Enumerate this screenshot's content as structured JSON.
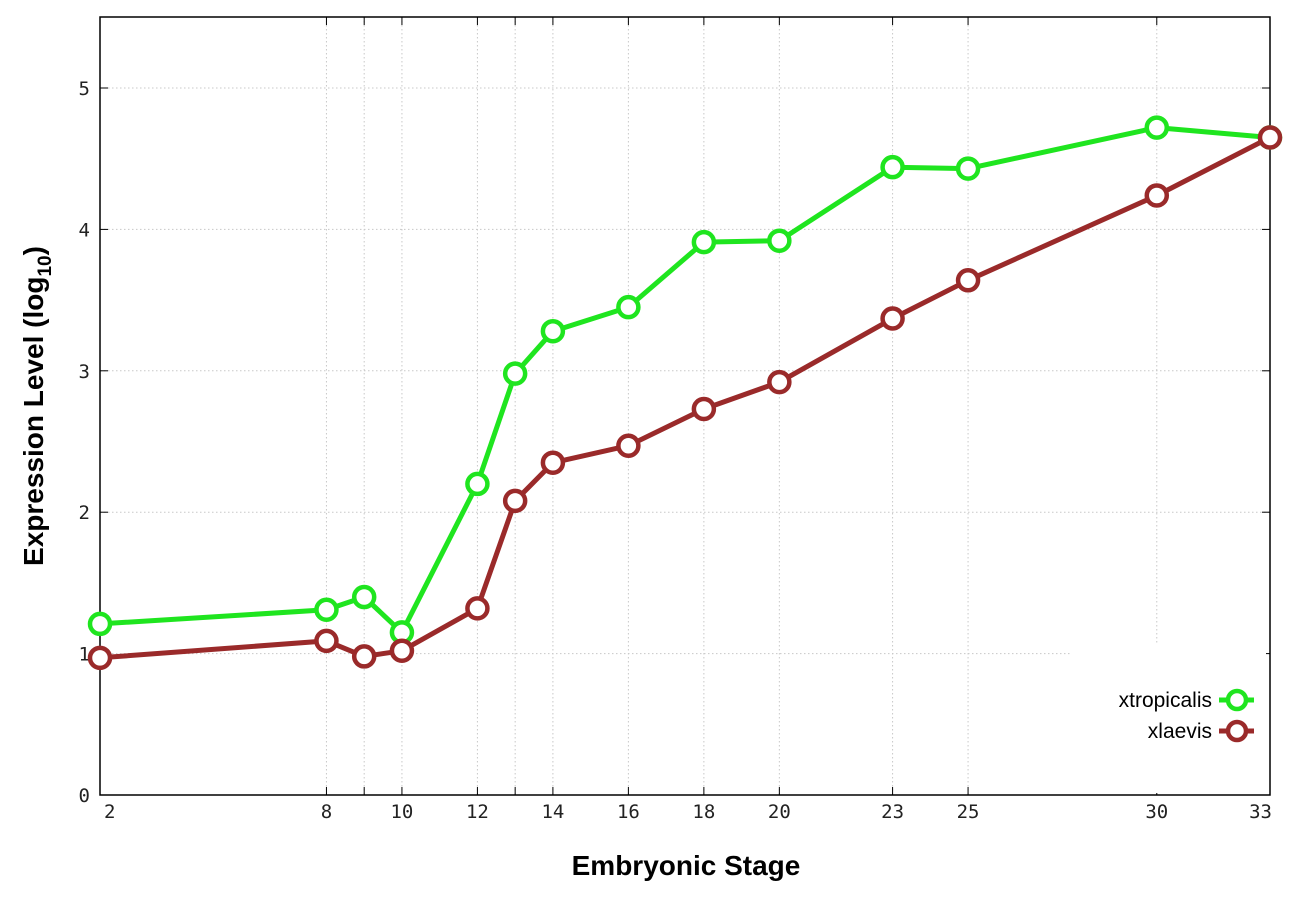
{
  "chart_data": {
    "type": "line",
    "xlabel": "Embryonic Stage",
    "ylabel_main": "Expression Level (log",
    "ylabel_sub": "10",
    "ylabel_close": ")",
    "x_ticks": [
      2,
      8,
      9,
      10,
      12,
      13,
      14,
      16,
      18,
      20,
      23,
      25,
      30,
      33
    ],
    "x_tick_labels": [
      "2",
      "8",
      "",
      "10",
      "12",
      "",
      "14",
      "16",
      "18",
      "20",
      "23",
      "25",
      "30",
      "33"
    ],
    "y_ticks": [
      0,
      1,
      2,
      3,
      4,
      5
    ],
    "y_tick_labels": [
      "0",
      "1",
      "2",
      "3",
      "4",
      "5"
    ],
    "ylim": [
      0,
      5.5
    ],
    "grid": true,
    "legend_position": "bottom-right",
    "series": [
      {
        "name": "xtropicalis",
        "color": "#1fe51f",
        "x": [
          2,
          8,
          9,
          10,
          12,
          13,
          14,
          16,
          18,
          20,
          23,
          25,
          30,
          33
        ],
        "values": [
          1.21,
          1.31,
          1.4,
          1.15,
          2.2,
          2.98,
          3.28,
          3.45,
          3.91,
          3.92,
          4.44,
          4.43,
          4.72,
          4.65
        ]
      },
      {
        "name": "xlaevis",
        "color": "#9a2a2a",
        "x": [
          2,
          8,
          9,
          10,
          12,
          13,
          14,
          16,
          18,
          20,
          23,
          25,
          30,
          33
        ],
        "values": [
          0.97,
          1.09,
          0.98,
          1.02,
          1.32,
          2.08,
          2.35,
          2.47,
          2.73,
          2.92,
          3.37,
          3.64,
          4.24,
          4.65
        ]
      }
    ]
  }
}
